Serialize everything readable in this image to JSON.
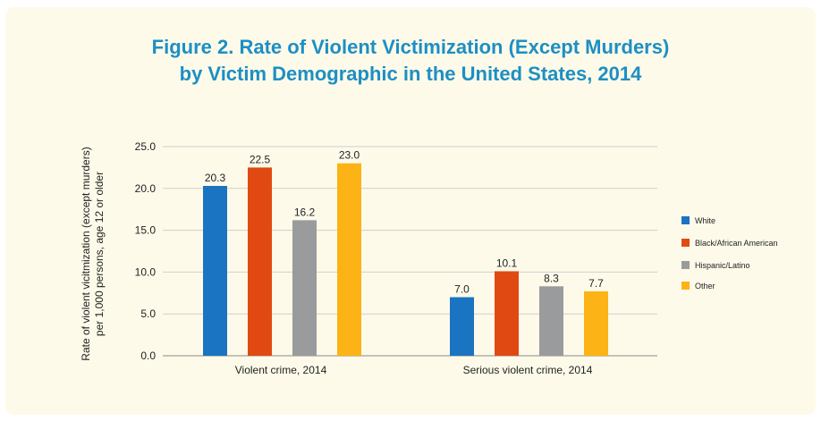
{
  "chart_data": {
    "type": "bar",
    "title_line1": "Figure 2. Rate of Violent Victimization (Except Murders)",
    "title_line2": "by Victim Demographic in the United States, 2014",
    "ylabel_line1": "Rate of violent vicitmization (except murders)",
    "ylabel_line2": "per 1,000 persons, age 12 or older",
    "xlabel": "",
    "ylim": [
      0,
      25
    ],
    "yticks": [
      "0.0",
      "5.0",
      "10.0",
      "15.0",
      "20.0",
      "25.0"
    ],
    "grid": true,
    "legend_position": "right",
    "categories": [
      "Violent crime, 2014",
      "Serious violent crime, 2014"
    ],
    "series": [
      {
        "name": "White",
        "color": "#1a74c2",
        "values": [
          20.3,
          7.0
        ],
        "labels": [
          "20.3",
          "7.0"
        ]
      },
      {
        "name": "Black/African American",
        "color": "#e04a12",
        "values": [
          22.5,
          10.1
        ],
        "labels": [
          "22.5",
          "10.1"
        ]
      },
      {
        "name": "Hispanic/Latino",
        "color": "#9a9b9d",
        "values": [
          16.2,
          8.3
        ],
        "labels": [
          "16.2",
          "8.3"
        ]
      },
      {
        "name": "Other",
        "color": "#fbb315",
        "values": [
          23.0,
          7.7
        ],
        "labels": [
          "23.0",
          "7.7"
        ]
      }
    ]
  }
}
